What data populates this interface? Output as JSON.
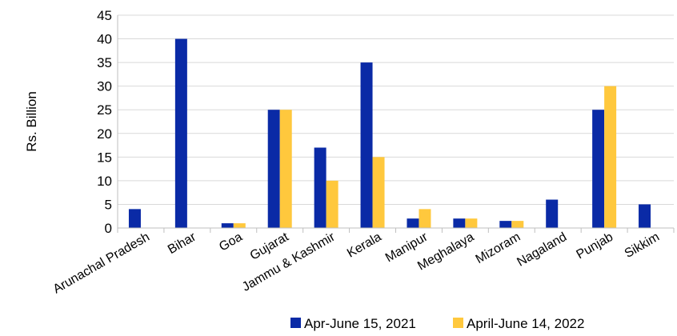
{
  "chart_data": {
    "type": "bar",
    "title": "",
    "xlabel": "",
    "ylabel": "Rs. Billion",
    "ylim": [
      0,
      45
    ],
    "yticks": [
      0,
      5,
      10,
      15,
      20,
      25,
      30,
      35,
      40,
      45
    ],
    "grid": "horizontal",
    "legend_position": "bottom",
    "categories": [
      "Arunachal Pradesh",
      "Bihar",
      "Goa",
      "Gujarat",
      "Jammu & Kashmir",
      "Kerala",
      "Manipur",
      "Meghalaya",
      "Mizoram",
      "Nagaland",
      "Punjab",
      "Sikkim"
    ],
    "series": [
      {
        "name": "Apr-June 15, 2021",
        "color": "#0a2aa6",
        "values": [
          4,
          40,
          1,
          25,
          17,
          35,
          2,
          2,
          1.5,
          6,
          25,
          5
        ]
      },
      {
        "name": "April-June 14, 2022",
        "color": "#ffc83d",
        "values": [
          0,
          0,
          1,
          25,
          10,
          15,
          4,
          2,
          1.5,
          0,
          30,
          0
        ]
      }
    ]
  }
}
